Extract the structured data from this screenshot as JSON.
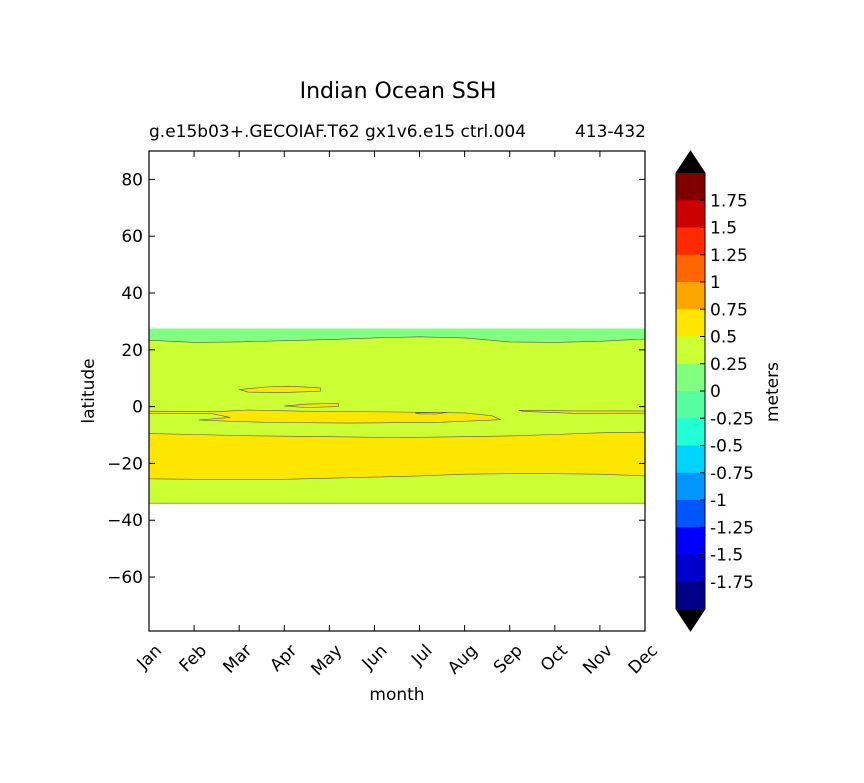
{
  "chart_data": {
    "type": "contour",
    "title": "Indian Ocean SSH",
    "subtitle": "g.e15b03+.GECOIAF.T62 gx1v6.e15 ctrl.004",
    "subtitle_years": "413-432",
    "xlabel": "month",
    "ylabel": "latitude",
    "x_categories": [
      "Jan",
      "Feb",
      "Mar",
      "Apr",
      "May",
      "Jun",
      "Jul",
      "Aug",
      "Sep",
      "Oct",
      "Nov",
      "Dec"
    ],
    "y_ticks": [
      80,
      60,
      40,
      20,
      0,
      -20,
      -40,
      -60
    ],
    "y_tick_labels": [
      "80",
      "60",
      "40",
      "20",
      "0",
      "−20",
      "−40",
      "−60"
    ],
    "ylim": [
      -79,
      90
    ],
    "xlim": [
      0,
      11
    ],
    "data_lat_range": [
      -34,
      27.5
    ],
    "regions": [
      {
        "level": "0 to 0.25",
        "color": "#80ff80",
        "lat_top": [
          27.5,
          27.5,
          27.5,
          27.5,
          27.5,
          27.5,
          27.5,
          27.5,
          27.5,
          27.5,
          27.5,
          27.5
        ],
        "lat_bottom": [
          -34,
          -34,
          -34,
          -34,
          -34,
          -34,
          -34,
          -34,
          -34,
          -34,
          -34,
          -34
        ]
      },
      {
        "level": "0.25 to 0.5",
        "color": "#ccff33",
        "lat_top": [
          23.4,
          22.6,
          22.8,
          23.2,
          23.6,
          24.2,
          24.6,
          24.2,
          22.8,
          22.6,
          23.0,
          23.8
        ],
        "lat_bottom": [
          -34,
          -34,
          -34,
          -34,
          -34,
          -34,
          -34,
          -34,
          -34,
          -34,
          -34,
          -34
        ]
      },
      {
        "level": "0.5 to 0.75 (southern band)",
        "color": "#ffe600",
        "lat_top": [
          -9.5,
          -9.8,
          -10.2,
          -10.4,
          -10.6,
          -10.8,
          -10.8,
          -10.6,
          -10.3,
          -9.8,
          -9.2,
          -9.0
        ],
        "lat_bottom": [
          -25.4,
          -25.6,
          -25.6,
          -25.6,
          -25.2,
          -24.8,
          -24.4,
          -23.8,
          -23.6,
          -23.6,
          -23.8,
          -24.4
        ]
      }
    ],
    "colorbar": {
      "label": "meters",
      "extend": "both",
      "tick_labels": [
        "1.75",
        "1.5",
        "1.25",
        "1",
        "0.75",
        "0.5",
        "0.25",
        "0",
        "-0.25",
        "-0.5",
        "-0.75",
        "-1",
        "-1.25",
        "-1.5",
        "-1.75"
      ],
      "colors_top_to_bottom": [
        "#800000",
        "#cc0000",
        "#ff2a00",
        "#ff6600",
        "#ffa500",
        "#ffe600",
        "#ccff33",
        "#80ff80",
        "#55ff9f",
        "#22ffd5",
        "#00d5ff",
        "#0095ff",
        "#0055ff",
        "#0000ff",
        "#0000cc",
        "#000088"
      ],
      "extend_max_color": "#000000",
      "extend_min_color": "#000000"
    }
  }
}
